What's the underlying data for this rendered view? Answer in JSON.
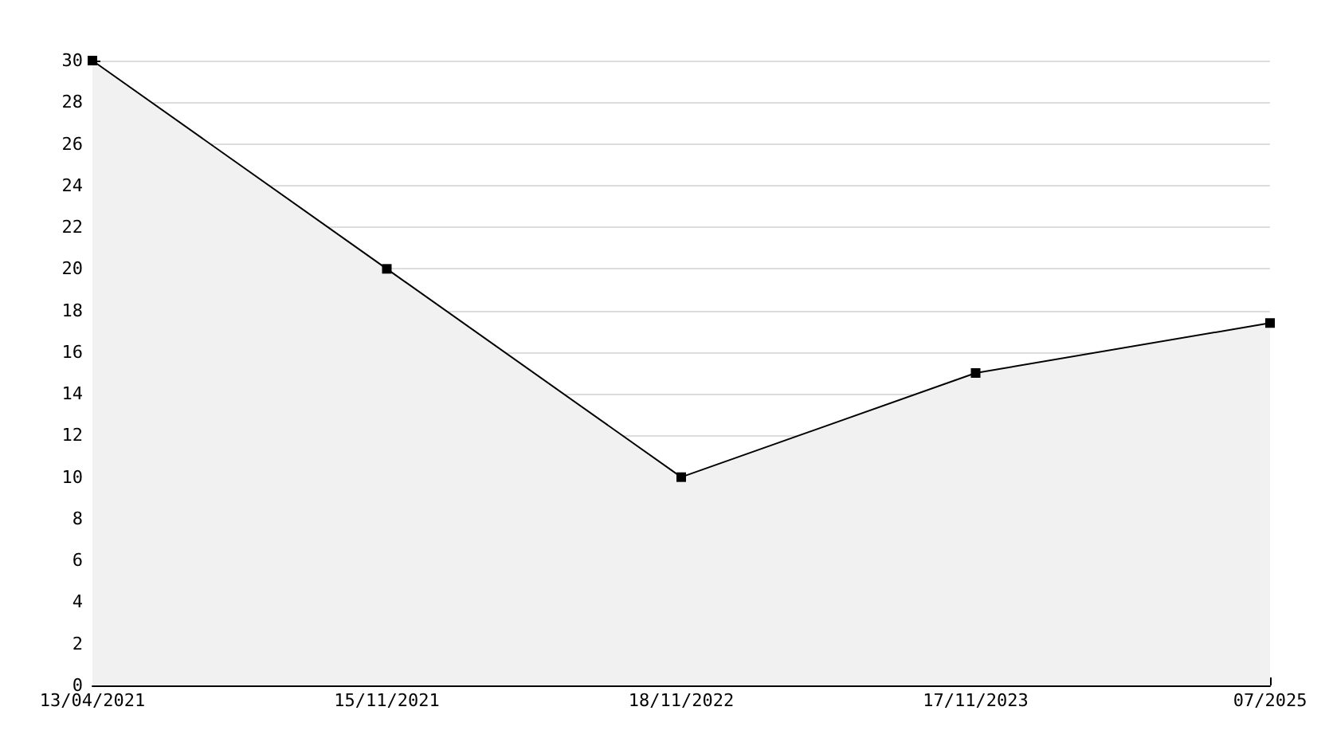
{
  "chart_data": {
    "type": "area",
    "categories": [
      "13/04/2021",
      "15/11/2021",
      "18/11/2022",
      "17/11/2023",
      "07/2025"
    ],
    "series": [
      {
        "color": "#000000",
        "values": [
          30,
          20,
          10,
          15,
          17.4
        ]
      }
    ],
    "ylim": [
      0,
      30
    ],
    "yticks": [
      0,
      2,
      4,
      6,
      8,
      10,
      12,
      14,
      16,
      18,
      20,
      22,
      24,
      26,
      28,
      30
    ],
    "grid": "y",
    "marker": "square",
    "line_style": "solid"
  }
}
